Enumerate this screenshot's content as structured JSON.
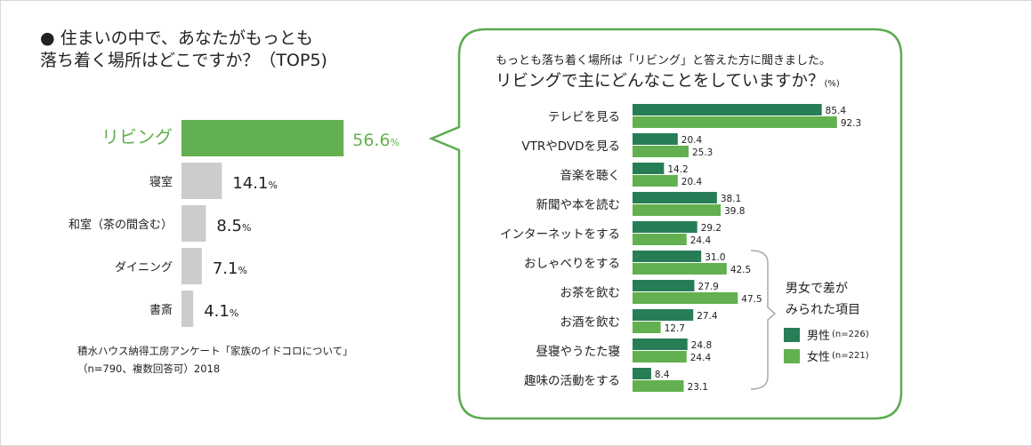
{
  "title": "住まいの中で、あなたがもっとも\n落ち着く場所はどこですか？（TOP5)",
  "source": "積水ハウス納得工房アンケート「家族のイドコロについて」\n（n=790、複数回答可）2018",
  "colors": {
    "highlight": "#62b04f",
    "gray": "#cccccc",
    "male": "#277d55",
    "female": "#62b04f",
    "bubble": "#5aac4e"
  },
  "chart_data": [
    {
      "type": "bar",
      "orientation": "horizontal",
      "categories": [
        "リビング",
        "寝室",
        "和室（茶の間含む）",
        "ダイニング",
        "書斎"
      ],
      "values": [
        56.6,
        14.1,
        8.5,
        7.1,
        4.1
      ],
      "unit": "%",
      "highlight": "リビング"
    },
    {
      "type": "bar",
      "orientation": "horizontal",
      "subtitle": "もっとも落ち着く場所は「リビング」と答えた方に聞きました。",
      "title": "リビングで主にどんなことをしていますか？",
      "unit": "(%)",
      "categories": [
        "テレビを見る",
        "VTRやDVDを見る",
        "音楽を聴く",
        "新聞や本を読む",
        "インターネットをする",
        "おしゃべりをする",
        "お茶を飲む",
        "お酒を飲む",
        "昼寝やうたた寝",
        "趣味の活動をする"
      ],
      "series": [
        {
          "name": "男性",
          "n": "(n=226)",
          "values": [
            85.4,
            20.4,
            14.2,
            38.1,
            29.2,
            31.0,
            27.9,
            27.4,
            24.8,
            8.4
          ]
        },
        {
          "name": "女性",
          "n": "(n=221)",
          "values": [
            92.3,
            25.3,
            20.4,
            39.8,
            24.4,
            42.5,
            47.5,
            12.7,
            24.4,
            23.1
          ]
        }
      ],
      "annotation": "男女で差が\nみられた項目",
      "legend": "right"
    }
  ]
}
